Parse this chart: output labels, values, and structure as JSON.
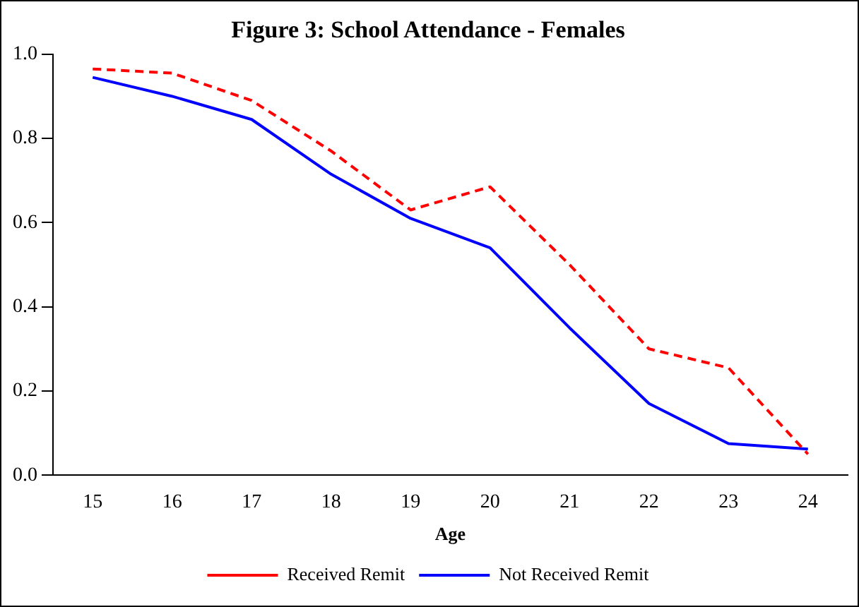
{
  "chart_data": {
    "type": "line",
    "title": "Figure 3: School Attendance - Females",
    "xlabel": "Age",
    "categories": [
      "15",
      "16",
      "17",
      "18",
      "19",
      "20",
      "21",
      "22",
      "23",
      "24"
    ],
    "series": [
      {
        "name": "Received Remit",
        "color": "#ff0000",
        "line_style": "dashed",
        "values": [
          0.965,
          0.955,
          0.89,
          0.77,
          0.63,
          0.685,
          0.5,
          0.3,
          0.255,
          0.05
        ]
      },
      {
        "name": "Not Received Remit",
        "color": "#0000ff",
        "line_style": "solid",
        "values": [
          0.945,
          0.9,
          0.845,
          0.715,
          0.61,
          0.54,
          0.35,
          0.17,
          0.075,
          0.062
        ]
      }
    ],
    "ylim": [
      0,
      1
    ],
    "yticks": [
      {
        "value": 0,
        "label": "0.0"
      },
      {
        "value": 0.2,
        "label": "0.2"
      },
      {
        "value": 0.4,
        "label": "0.4"
      },
      {
        "value": 0.6,
        "label": "0.6"
      },
      {
        "value": 0.8,
        "label": "0.8"
      },
      {
        "value": 1,
        "label": "1.0"
      }
    ],
    "grid": false,
    "legend": "bottom",
    "marker": "none"
  }
}
